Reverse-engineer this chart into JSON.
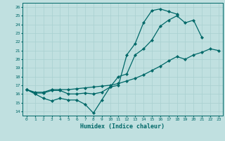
{
  "xlabel": "Humidex (Indice chaleur)",
  "bg_color": "#c0e0e0",
  "grid_color": "#a8d0d0",
  "line_color": "#006868",
  "xlim": [
    -0.5,
    23.5
  ],
  "ylim": [
    13.5,
    26.5
  ],
  "yticks": [
    14,
    15,
    16,
    17,
    18,
    19,
    20,
    21,
    22,
    23,
    24,
    25,
    26
  ],
  "xticks": [
    0,
    1,
    2,
    3,
    4,
    5,
    6,
    7,
    8,
    9,
    10,
    11,
    12,
    13,
    14,
    15,
    16,
    17,
    18,
    19,
    20,
    21,
    22,
    23
  ],
  "line1_x": [
    0,
    1,
    2,
    3,
    4,
    5,
    6,
    7,
    8,
    9,
    10,
    11,
    12,
    13,
    14,
    15,
    16,
    17,
    18
  ],
  "line1_y": [
    16.5,
    16.0,
    15.5,
    15.2,
    15.5,
    15.3,
    15.3,
    14.8,
    13.8,
    15.3,
    16.8,
    17.0,
    20.5,
    21.8,
    24.2,
    25.6,
    25.8,
    25.5,
    25.2
  ],
  "line2_x": [
    0,
    1,
    2,
    3,
    4,
    5,
    6,
    7,
    8,
    9,
    10,
    11,
    12,
    13,
    14,
    15,
    16,
    17,
    18,
    19,
    20,
    21
  ],
  "line2_y": [
    16.5,
    16.1,
    16.1,
    16.4,
    16.4,
    16.0,
    16.0,
    16.1,
    16.0,
    16.2,
    16.8,
    18.0,
    18.3,
    20.5,
    21.2,
    22.2,
    23.8,
    24.5,
    25.0,
    24.2,
    24.5,
    22.5
  ],
  "line3_x": [
    0,
    1,
    2,
    3,
    4,
    5,
    6,
    7,
    8,
    9,
    10,
    11,
    12,
    13,
    14,
    15,
    16,
    17,
    18,
    19,
    20,
    21,
    22,
    23
  ],
  "line3_y": [
    16.5,
    16.2,
    16.2,
    16.5,
    16.5,
    16.5,
    16.6,
    16.7,
    16.8,
    16.9,
    17.0,
    17.2,
    17.5,
    17.8,
    18.2,
    18.7,
    19.2,
    19.8,
    20.3,
    20.0,
    20.5,
    20.8,
    21.2,
    21.0
  ]
}
